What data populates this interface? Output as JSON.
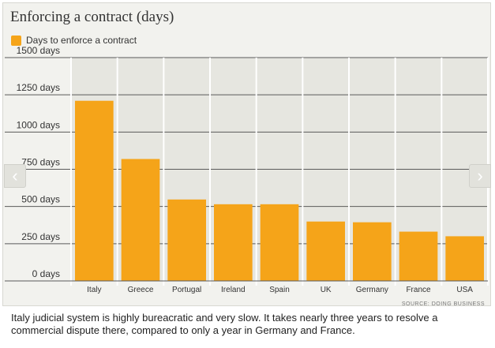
{
  "chart_data": {
    "type": "bar",
    "title": "Enforcing a contract (days)",
    "legend": [
      "Days to enforce a contract"
    ],
    "categories": [
      "Italy",
      "Greece",
      "Portugal",
      "Ireland",
      "Spain",
      "UK",
      "Germany",
      "France",
      "USA"
    ],
    "series": [
      {
        "name": "Days to enforce a contract",
        "values": [
          1210,
          819,
          547,
          515,
          515,
          399,
          394,
          331,
          300
        ]
      }
    ],
    "ylim": [
      0,
      1500
    ],
    "yticks": [
      0,
      250,
      500,
      750,
      1000,
      1250,
      1500
    ],
    "ytick_labels": [
      "0 days",
      "250 days",
      "500 days",
      "750 days",
      "1000 days",
      "1250 days",
      "1500 days"
    ],
    "xlabel": "",
    "ylabel": "",
    "grid": true,
    "source": "SOURCE: DOING BUSINESS"
  },
  "colors": {
    "bar": "#f5a419",
    "plot_bg": "#e6e6e0",
    "frame_bg": "#f2f2ee"
  },
  "nav": {
    "prev_icon": "chevron-left-icon",
    "next_icon": "chevron-right-icon"
  },
  "caption": "Italy judicial system is highly bureacratic and very slow. It takes nearly three years to resolve a commercial dispute there, compared to only a year in Germany and France."
}
